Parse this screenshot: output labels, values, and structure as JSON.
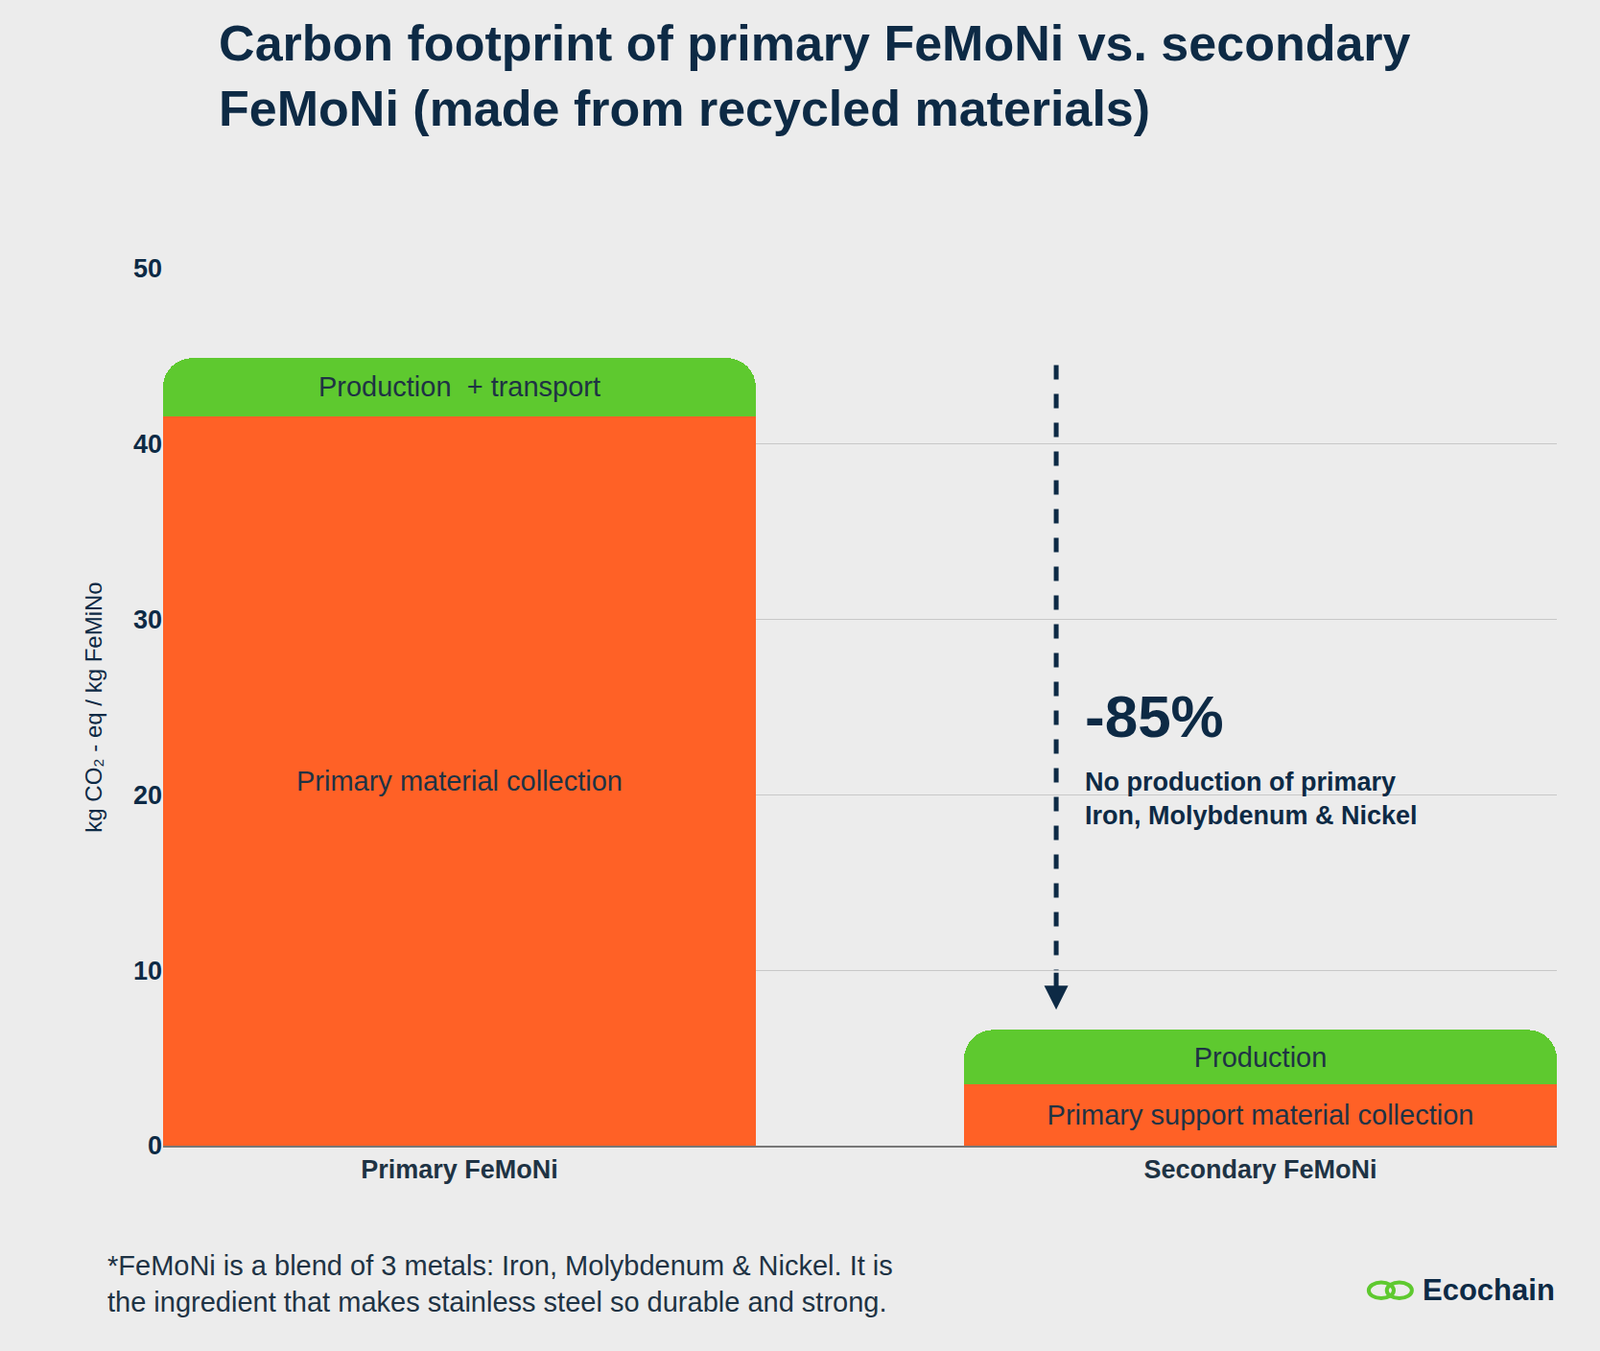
{
  "chart_data": {
    "type": "bar",
    "stacked": true,
    "title": [
      "Carbon footprint of primary FeMoNi vs. secondary",
      "FeMoNi (made from recycled materials)"
    ],
    "y_label": "kg CO₂ - eq / kg FeMiNo",
    "categories": [
      "Primary FeMoNi",
      "Secondary FeMoNi"
    ],
    "series": [
      {
        "color": "#ff6126",
        "values": [
          41.6,
          3.5
        ],
        "labels": [
          "Primary material collection",
          "Primary support material collection"
        ]
      },
      {
        "color": "#5ec92f",
        "values": [
          3.3,
          3.1
        ],
        "labels": [
          "Production  + transport",
          "Production"
        ]
      }
    ],
    "ylim": [
      0,
      50
    ],
    "yticks": [
      0,
      10,
      20,
      30,
      40,
      50
    ],
    "grid": true,
    "annotations": {
      "change": "-85%",
      "change_note": [
        "No production of primary",
        "Iron, Molybdenum & Nickel"
      ],
      "footnote": [
        "*FeMoNi is a blend of 3 metals: Iron, Molybdenum & Nickel. It is",
        "the ingredient that makes stainless steel so durable and strong."
      ],
      "brand": "Ecochain"
    }
  }
}
